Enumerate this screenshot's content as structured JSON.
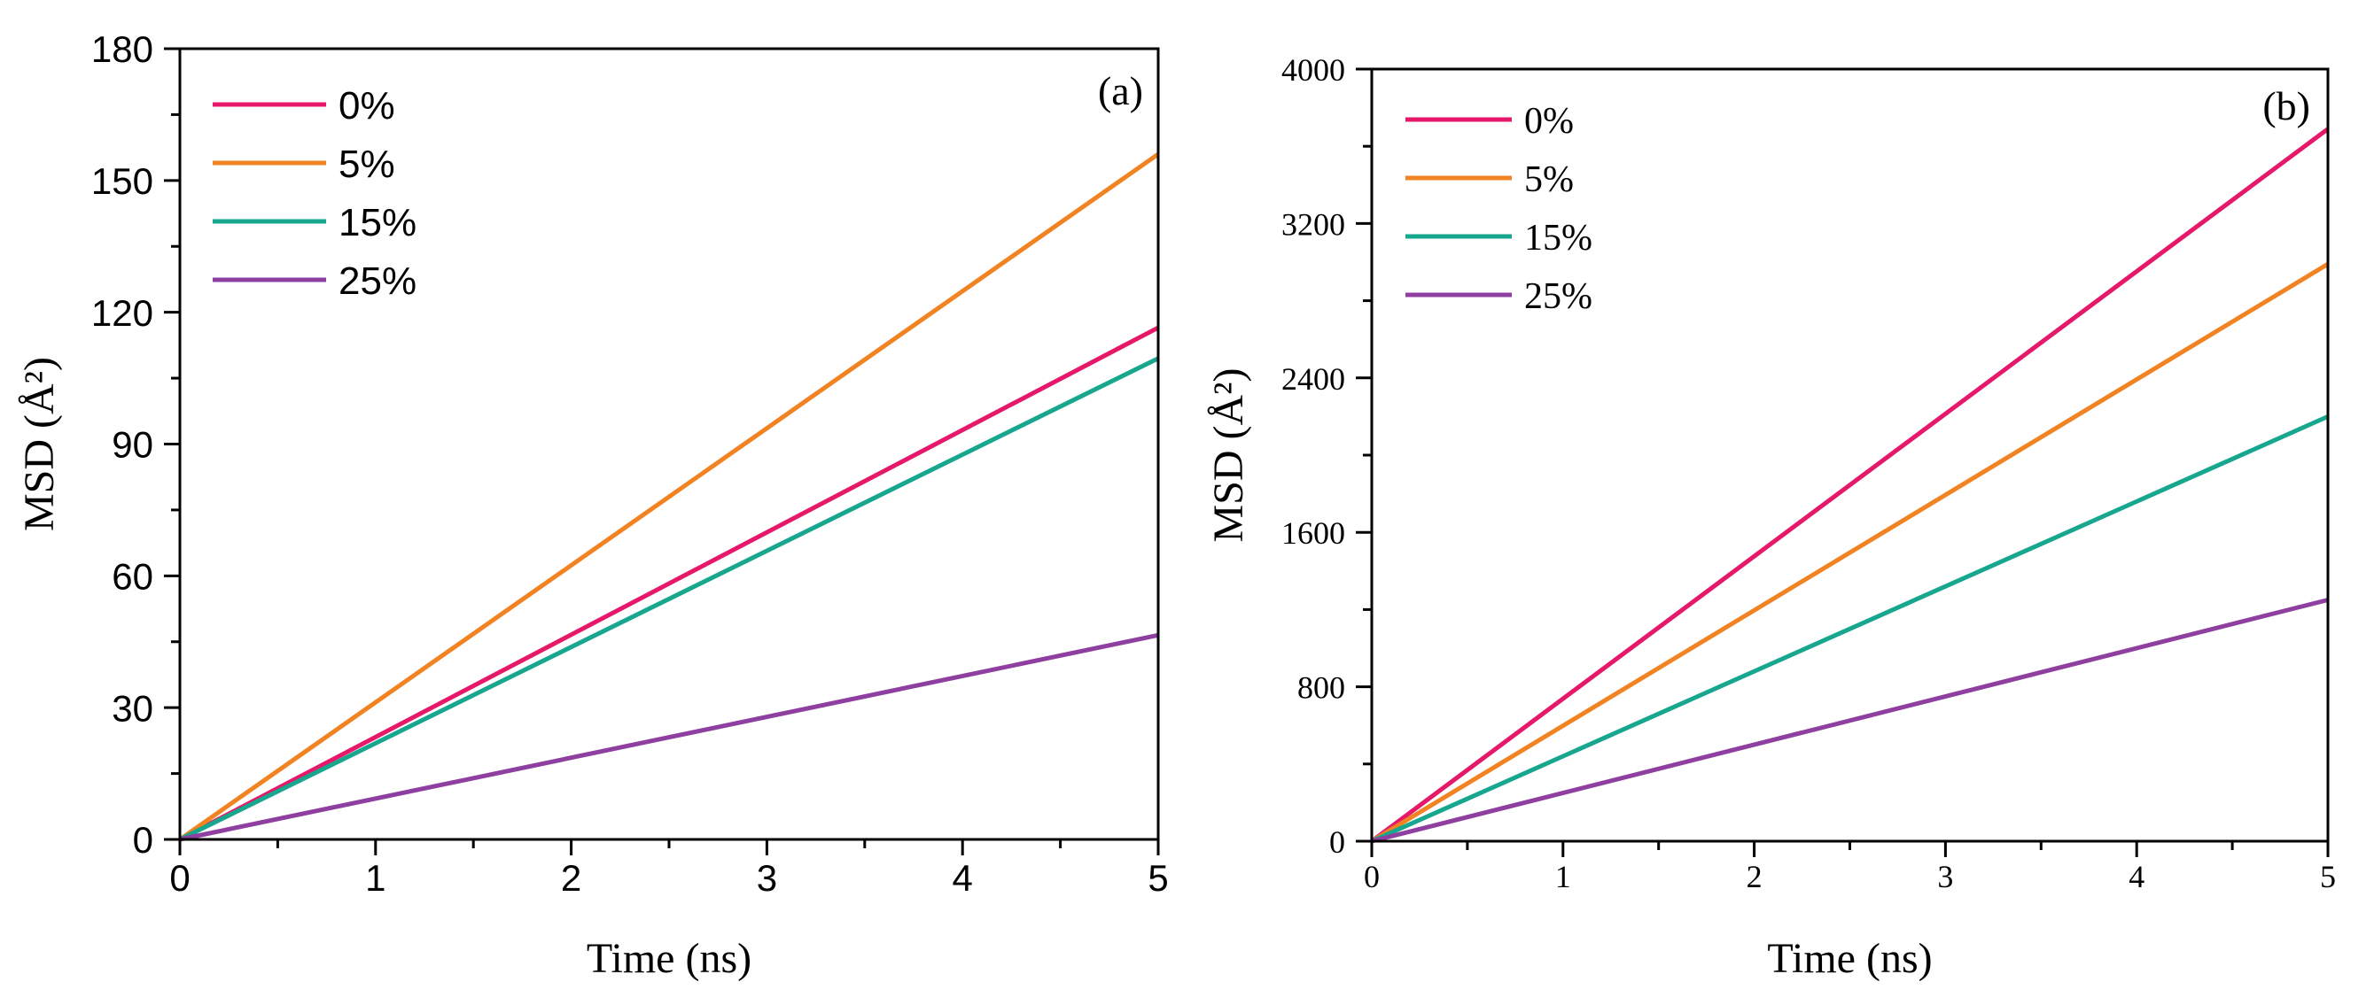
{
  "chart_data": [
    {
      "type": "line",
      "panel_label": "(a)",
      "title": "",
      "xlabel": "Time (ns)",
      "ylabel": "MSD (Å²)",
      "xlim": [
        0,
        5
      ],
      "ylim": [
        0,
        180
      ],
      "xticks": [
        0,
        1,
        2,
        3,
        4,
        5
      ],
      "yticks": [
        0,
        30,
        60,
        90,
        120,
        150,
        180
      ],
      "legend_position": "top-left",
      "series": [
        {
          "name": "0%",
          "color": "#e6186a",
          "x": [
            0,
            5
          ],
          "y": [
            0,
            116.5
          ]
        },
        {
          "name": "5%",
          "color": "#f28322",
          "x": [
            0,
            5
          ],
          "y": [
            0,
            156
          ]
        },
        {
          "name": "15%",
          "color": "#17a68e",
          "x": [
            0,
            5
          ],
          "y": [
            0,
            109.5
          ]
        },
        {
          "name": "25%",
          "color": "#8f3fa0",
          "x": [
            0,
            5
          ],
          "y": [
            0,
            46.5
          ]
        }
      ]
    },
    {
      "type": "line",
      "panel_label": "(b)",
      "title": "",
      "xlabel": "Time (ns)",
      "ylabel": "MSD (Å²)",
      "xlim": [
        0,
        5
      ],
      "ylim": [
        0,
        4000
      ],
      "xticks": [
        0,
        1,
        2,
        3,
        4,
        5
      ],
      "yticks": [
        0,
        800,
        1600,
        2400,
        3200,
        4000
      ],
      "legend_position": "top-left",
      "series": [
        {
          "name": "0%",
          "color": "#e6186a",
          "x": [
            0,
            5
          ],
          "y": [
            0,
            3690
          ]
        },
        {
          "name": "5%",
          "color": "#f28322",
          "x": [
            0,
            5
          ],
          "y": [
            0,
            2990
          ]
        },
        {
          "name": "15%",
          "color": "#17a68e",
          "x": [
            0,
            5
          ],
          "y": [
            0,
            2200
          ]
        },
        {
          "name": "25%",
          "color": "#8f3fa0",
          "x": [
            0,
            5
          ],
          "y": [
            0,
            1250
          ]
        }
      ]
    }
  ]
}
